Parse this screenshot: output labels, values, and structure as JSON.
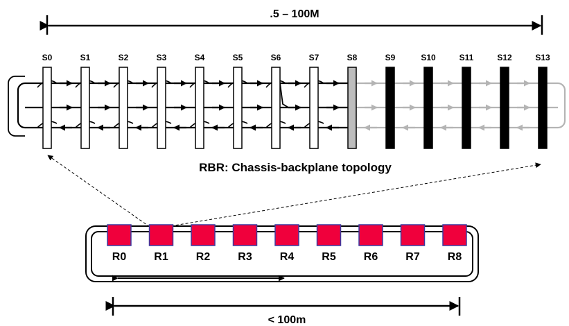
{
  "top_span_label": ".5 – 100M",
  "caption": "RBR: Chassis-backplane topology",
  "bottom_span_label": "< 100m",
  "stations": [
    {
      "label": "S0",
      "state": "white"
    },
    {
      "label": "S1",
      "state": "white"
    },
    {
      "label": "S2",
      "state": "white"
    },
    {
      "label": "S3",
      "state": "white"
    },
    {
      "label": "S4",
      "state": "white"
    },
    {
      "label": "S5",
      "state": "white"
    },
    {
      "label": "S6",
      "state": "white"
    },
    {
      "label": "S7",
      "state": "white"
    },
    {
      "label": "S8",
      "state": "gray"
    },
    {
      "label": "S9",
      "state": "black"
    },
    {
      "label": "S10",
      "state": "black"
    },
    {
      "label": "S11",
      "state": "black"
    },
    {
      "label": "S12",
      "state": "black"
    },
    {
      "label": "S13",
      "state": "black"
    }
  ],
  "ring_nodes": [
    "R0",
    "R1",
    "R2",
    "R3",
    "R4",
    "R5",
    "R6",
    "R7",
    "R8"
  ],
  "colors": {
    "active": "#000000",
    "inactive": "#b4b4b4",
    "bypass_card": "#bdbdbd",
    "node_fill": "#f0003c",
    "node_border": "#3a3aa0"
  }
}
